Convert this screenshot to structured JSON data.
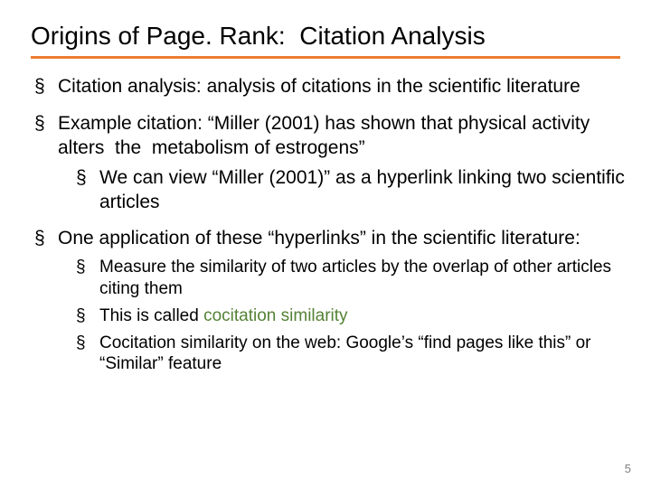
{
  "title": "Origins of Page. Rank:  Citation Analysis",
  "bullets": {
    "b1": "Citation analysis: analysis of citations in the scientific literature",
    "b2": "Example citation: “Miller (2001) has shown that physical activity alters  the  metabolism of estrogens”",
    "b2_1": "We can view “Miller (2001)” as a hyperlink linking two scientific articles",
    "b3": "One application of these “hyperlinks” in the scientific literature:",
    "b3_1": "Measure the similarity of two articles by the overlap of other articles citing them",
    "b3_2a": "This is called ",
    "b3_2b": "cocitation similarity",
    "b3_3": "Cocitation similarity on the web: Google’s “find pages like this” or “Similar” feature"
  },
  "page_number": "5",
  "colors": {
    "accent_rule": "#ed7d31",
    "highlight_text": "#548235",
    "page_num": "#808080",
    "text": "#000000",
    "background": "#ffffff"
  }
}
